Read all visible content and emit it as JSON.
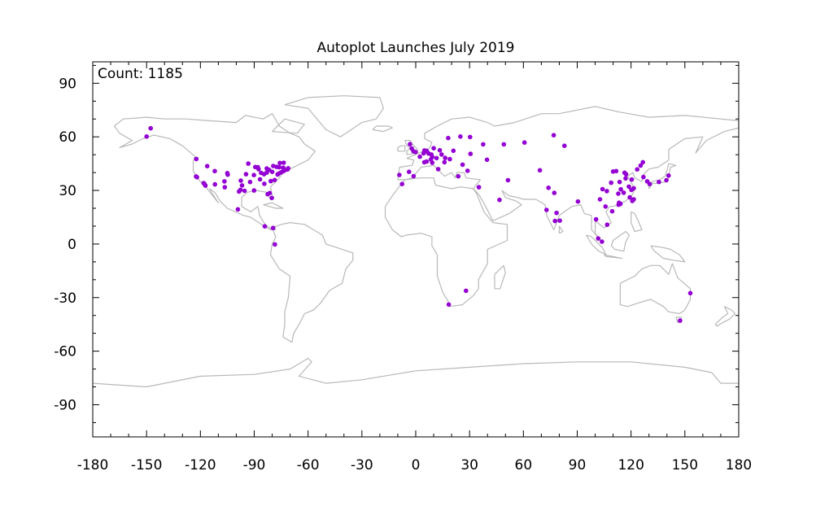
{
  "chart_data": {
    "type": "scatter",
    "title": "Autoplot Launches July 2019",
    "annotation": "Count: 1185",
    "xlabel": "",
    "ylabel": "",
    "xlim": [
      -180,
      180
    ],
    "ylim": [
      -108,
      102
    ],
    "x_ticks": [
      -180,
      -150,
      -120,
      -90,
      -60,
      -30,
      0,
      30,
      60,
      90,
      120,
      150,
      180
    ],
    "y_ticks": [
      90,
      60,
      30,
      0,
      -30,
      -60,
      -90
    ],
    "x_tick_labels": [
      "-180",
      "-150",
      "-120",
      "-90",
      "-60",
      "-30",
      "0",
      "30",
      "60",
      "90",
      "120",
      "150",
      "180"
    ],
    "y_tick_labels": [
      "90",
      "60",
      "30",
      "0",
      "-30",
      "-60",
      "-90"
    ],
    "grid": false,
    "background": "world map coastlines and borders",
    "colors": {
      "points": "#9400d3",
      "map": "#b8b8b8",
      "frame": "#000000"
    },
    "points": [
      [
        -147.7,
        64.8
      ],
      [
        -150.0,
        60.2
      ],
      [
        -122.4,
        37.8
      ],
      [
        -121.9,
        37.4
      ],
      [
        -122.3,
        47.6
      ],
      [
        -118.2,
        34.1
      ],
      [
        -117.2,
        32.7
      ],
      [
        -117.8,
        33.7
      ],
      [
        -111.9,
        33.4
      ],
      [
        -112.0,
        40.8
      ],
      [
        -116.2,
        43.6
      ],
      [
        -106.6,
        35.1
      ],
      [
        -105.0,
        39.7
      ],
      [
        -104.8,
        38.8
      ],
      [
        -106.4,
        31.8
      ],
      [
        -97.7,
        30.3
      ],
      [
        -96.8,
        32.8
      ],
      [
        -95.4,
        29.8
      ],
      [
        -98.5,
        29.4
      ],
      [
        -97.5,
        35.5
      ],
      [
        -94.6,
        39.1
      ],
      [
        -93.3,
        45.0
      ],
      [
        -90.2,
        38.6
      ],
      [
        -89.4,
        43.1
      ],
      [
        -87.6,
        41.9
      ],
      [
        -86.2,
        39.8
      ],
      [
        -86.8,
        36.2
      ],
      [
        -84.4,
        33.7
      ],
      [
        -83.0,
        40.0
      ],
      [
        -83.0,
        42.3
      ],
      [
        -81.7,
        41.5
      ],
      [
        -80.0,
        40.4
      ],
      [
        -80.8,
        35.2
      ],
      [
        -78.6,
        35.8
      ],
      [
        -77.0,
        38.9
      ],
      [
        -76.6,
        39.3
      ],
      [
        -75.2,
        40.0
      ],
      [
        -74.0,
        40.7
      ],
      [
        -73.8,
        42.7
      ],
      [
        -71.1,
        42.4
      ],
      [
        -72.9,
        41.3
      ],
      [
        -71.4,
        41.8
      ],
      [
        -79.4,
        43.7
      ],
      [
        -75.7,
        45.4
      ],
      [
        -73.6,
        45.5
      ],
      [
        -81.4,
        28.5
      ],
      [
        -80.2,
        25.8
      ],
      [
        -82.5,
        27.9
      ],
      [
        -90.1,
        30.0
      ],
      [
        -92.3,
        34.7
      ],
      [
        -88.0,
        43.0
      ],
      [
        -84.5,
        39.1
      ],
      [
        -77.5,
        43.2
      ],
      [
        -76.1,
        43.0
      ],
      [
        -99.1,
        19.4
      ],
      [
        -84.1,
        9.9
      ],
      [
        -79.5,
        9.0
      ],
      [
        -78.5,
        -0.2
      ],
      [
        -0.1,
        51.5
      ],
      [
        -1.3,
        52.0
      ],
      [
        -2.2,
        53.5
      ],
      [
        -3.2,
        55.9
      ],
      [
        2.3,
        48.9
      ],
      [
        4.8,
        45.8
      ],
      [
        -3.7,
        40.4
      ],
      [
        -9.1,
        38.7
      ],
      [
        4.9,
        52.4
      ],
      [
        4.4,
        50.8
      ],
      [
        6.1,
        52.1
      ],
      [
        7.1,
        50.7
      ],
      [
        8.7,
        50.1
      ],
      [
        9.2,
        48.8
      ],
      [
        11.6,
        48.1
      ],
      [
        13.4,
        52.5
      ],
      [
        10.0,
        53.6
      ],
      [
        6.1,
        46.2
      ],
      [
        8.5,
        47.4
      ],
      [
        12.5,
        41.9
      ],
      [
        9.2,
        45.5
      ],
      [
        16.4,
        48.2
      ],
      [
        14.4,
        50.1
      ],
      [
        19.0,
        47.5
      ],
      [
        21.0,
        52.2
      ],
      [
        18.1,
        59.3
      ],
      [
        24.9,
        60.2
      ],
      [
        30.3,
        59.9
      ],
      [
        37.6,
        55.8
      ],
      [
        30.5,
        50.5
      ],
      [
        23.7,
        37.9
      ],
      [
        26.1,
        44.4
      ],
      [
        28.9,
        41.0
      ],
      [
        35.2,
        31.8
      ],
      [
        46.7,
        24.7
      ],
      [
        51.4,
        35.7
      ],
      [
        -7.6,
        33.6
      ],
      [
        -1.2,
        38.0
      ],
      [
        16.0,
        45.8
      ],
      [
        39.7,
        47.2
      ],
      [
        49.1,
        55.8
      ],
      [
        60.6,
        56.8
      ],
      [
        82.9,
        55.0
      ],
      [
        76.9,
        60.9
      ],
      [
        18.4,
        -33.9
      ],
      [
        28.0,
        -26.2
      ],
      [
        69.2,
        41.3
      ],
      [
        72.9,
        19.1
      ],
      [
        77.2,
        28.6
      ],
      [
        77.6,
        12.9
      ],
      [
        78.5,
        17.4
      ],
      [
        74.0,
        31.5
      ],
      [
        80.3,
        13.1
      ],
      [
        90.4,
        23.8
      ],
      [
        100.5,
        13.8
      ],
      [
        103.8,
        1.35
      ],
      [
        101.7,
        3.1
      ],
      [
        106.7,
        10.8
      ],
      [
        105.8,
        21.0
      ],
      [
        102.7,
        25.0
      ],
      [
        104.1,
        30.7
      ],
      [
        106.5,
        29.6
      ],
      [
        108.9,
        34.3
      ],
      [
        113.3,
        23.1
      ],
      [
        114.1,
        22.5
      ],
      [
        114.3,
        30.6
      ],
      [
        116.4,
        39.9
      ],
      [
        117.2,
        39.1
      ],
      [
        118.8,
        32.1
      ],
      [
        120.2,
        30.3
      ],
      [
        121.5,
        31.2
      ],
      [
        113.6,
        34.7
      ],
      [
        112.9,
        28.2
      ],
      [
        119.3,
        26.1
      ],
      [
        117.0,
        36.7
      ],
      [
        120.4,
        36.1
      ],
      [
        123.4,
        41.8
      ],
      [
        126.6,
        45.8
      ],
      [
        125.3,
        43.9
      ],
      [
        126.9,
        37.5
      ],
      [
        129.0,
        35.1
      ],
      [
        121.5,
        25.0
      ],
      [
        120.7,
        24.1
      ],
      [
        135.5,
        34.7
      ],
      [
        139.7,
        35.7
      ],
      [
        140.9,
        38.3
      ],
      [
        130.4,
        33.6
      ],
      [
        110.0,
        40.6
      ],
      [
        111.7,
        40.8
      ],
      [
        115.9,
        28.7
      ],
      [
        113.1,
        22.0
      ],
      [
        109.5,
        18.3
      ],
      [
        153.0,
        -27.5
      ],
      [
        147.3,
        -42.9
      ]
    ]
  }
}
